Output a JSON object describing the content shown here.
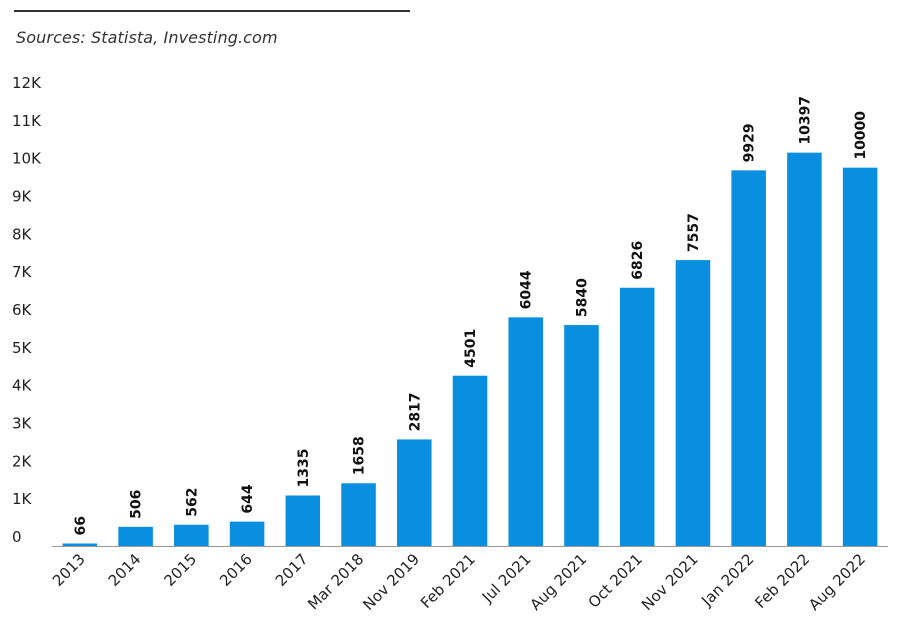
{
  "source_text": "Sources: Statista, Investing.com",
  "colors": {
    "bar": "#0a8fe0",
    "axis": "#999999",
    "rule": "#333333",
    "text": "#222222"
  },
  "chart_data": {
    "type": "bar",
    "categories": [
      "2013",
      "2014",
      "2015",
      "2016",
      "2017",
      "Mar 2018",
      "Nov 2019",
      "Feb 2021",
      "Jul 2021",
      "Aug 2021",
      "Oct 2021",
      "Nov 2021",
      "Jan 2022",
      "Feb 2022",
      "Aug 2022"
    ],
    "values": [
      66,
      506,
      562,
      644,
      1335,
      1658,
      2817,
      4501,
      6044,
      5840,
      6826,
      7557,
      9929,
      10397,
      10000
    ],
    "data_labels": [
      "66",
      "506",
      "562",
      "644",
      "1335",
      "1658",
      "2817",
      "4501",
      "6044",
      "5840",
      "6826",
      "7557",
      "9929",
      "10397",
      "10000"
    ],
    "ylim": [
      0,
      12000
    ],
    "yticks": [
      0,
      1000,
      2000,
      3000,
      4000,
      5000,
      6000,
      7000,
      8000,
      9000,
      10000,
      11000,
      12000
    ],
    "ytick_labels": [
      "0",
      "1K",
      "2K",
      "3K",
      "4K",
      "5K",
      "6K",
      "7K",
      "8K",
      "9K",
      "10K",
      "11K",
      "12K"
    ],
    "grid": false,
    "legend": "none"
  }
}
